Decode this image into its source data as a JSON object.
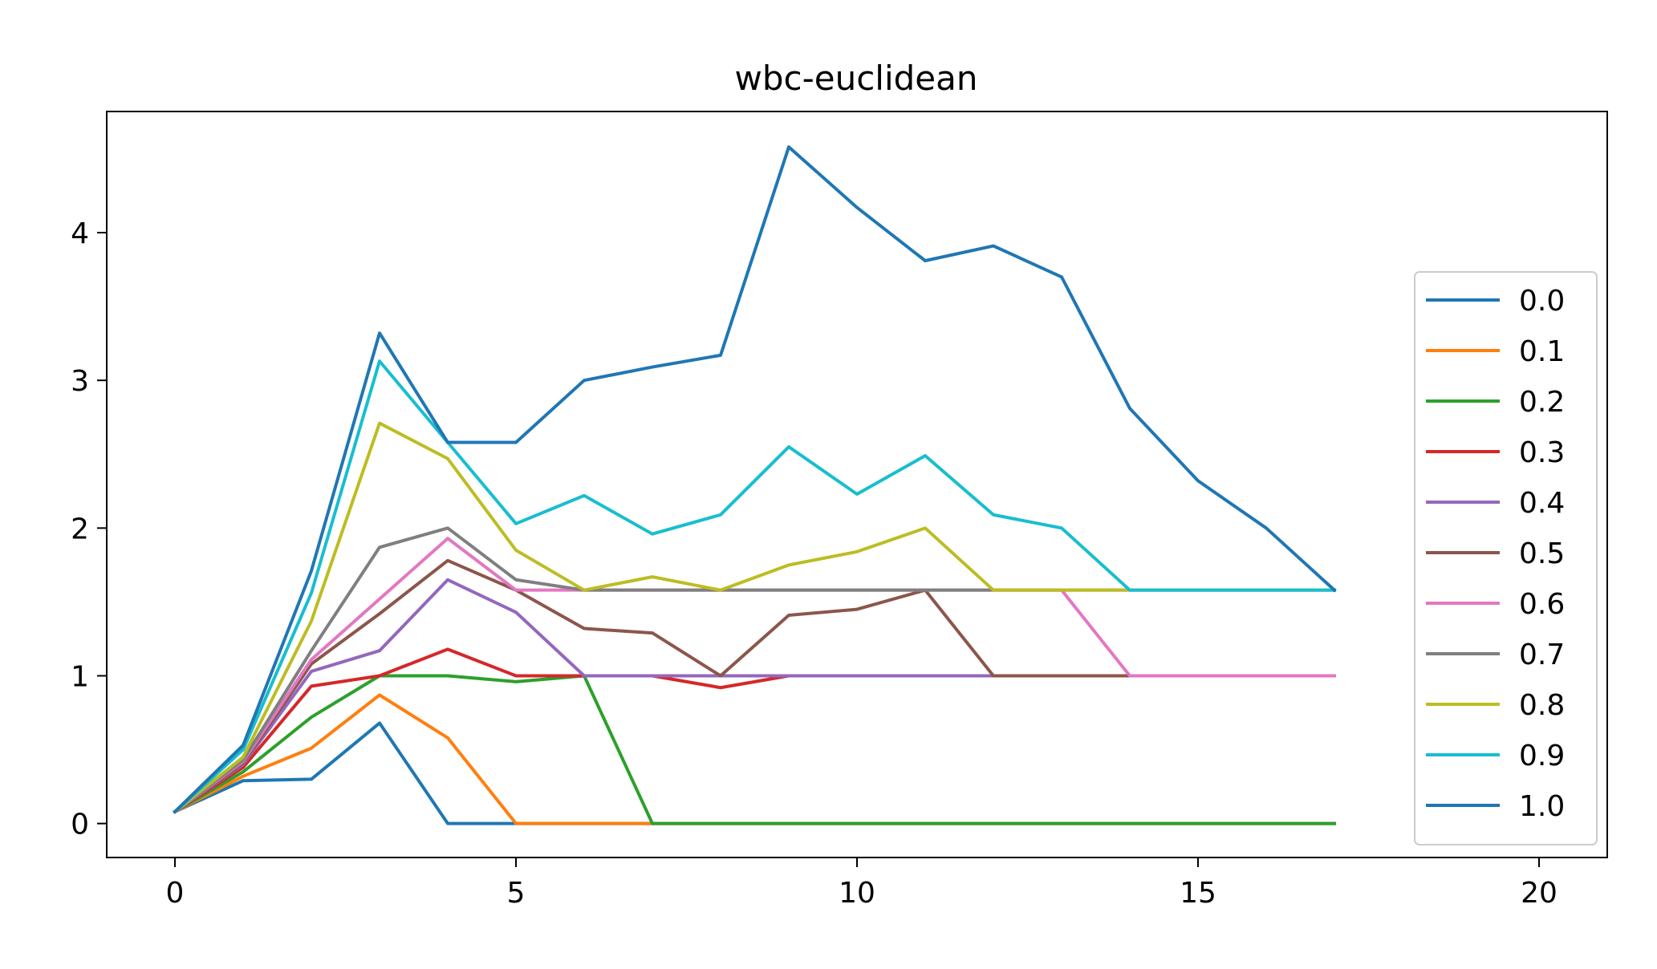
{
  "chart_data": {
    "type": "line",
    "title": "wbc-euclidean",
    "xlabel": "",
    "ylabel": "",
    "xlim": [
      -1,
      21
    ],
    "ylim": [
      -0.23,
      4.82
    ],
    "xticks": [
      0,
      5,
      10,
      15,
      20
    ],
    "yticks": [
      0,
      1,
      2,
      3,
      4
    ],
    "grid": false,
    "legend_position": "center-right",
    "x": [
      0,
      1,
      2,
      3,
      4,
      5,
      6,
      7,
      8,
      9,
      10,
      11,
      12,
      13,
      14,
      15,
      16,
      17
    ],
    "series": [
      {
        "name": "0.0",
        "color": "#1f77b4",
        "values": [
          0.08,
          0.29,
          0.3,
          0.68,
          0,
          0,
          0,
          0,
          0,
          0,
          0,
          0,
          0,
          0,
          0,
          0,
          0,
          0
        ]
      },
      {
        "name": "0.1",
        "color": "#ff7f0e",
        "values": [
          0.08,
          0.32,
          0.51,
          0.87,
          0.58,
          0,
          0,
          0,
          0,
          0,
          0,
          0,
          0,
          0,
          0,
          0,
          0,
          0
        ]
      },
      {
        "name": "0.2",
        "color": "#2ca02c",
        "values": [
          0.08,
          0.35,
          0.72,
          1.0,
          1.0,
          0.96,
          1.0,
          0,
          0,
          0,
          0,
          0,
          0,
          0,
          0,
          0,
          0,
          0
        ]
      },
      {
        "name": "0.3",
        "color": "#d62728",
        "values": [
          0.08,
          0.38,
          0.93,
          1.0,
          1.18,
          1.0,
          1.0,
          1.0,
          0.92,
          1.0,
          1.0,
          1.0,
          1.0,
          1.0,
          1.0,
          1.0,
          1.0,
          1.0
        ]
      },
      {
        "name": "0.4",
        "color": "#9467bd",
        "values": [
          0.08,
          0.4,
          1.03,
          1.17,
          1.65,
          1.43,
          1.0,
          1.0,
          1.0,
          1.0,
          1.0,
          1.0,
          1.0,
          1.0,
          1.0,
          1.0,
          1.0,
          1.0
        ]
      },
      {
        "name": "0.5",
        "color": "#8c564b",
        "values": [
          0.08,
          0.41,
          1.08,
          1.42,
          1.78,
          1.58,
          1.32,
          1.29,
          1.0,
          1.41,
          1.45,
          1.58,
          1.0,
          1.0,
          1.0,
          1.0,
          1.0,
          1.0
        ]
      },
      {
        "name": "0.6",
        "color": "#e377c2",
        "values": [
          0.08,
          0.42,
          1.11,
          1.52,
          1.93,
          1.58,
          1.58,
          1.58,
          1.58,
          1.58,
          1.58,
          1.58,
          1.58,
          1.58,
          1.0,
          1.0,
          1.0,
          1.0
        ]
      },
      {
        "name": "0.7",
        "color": "#7f7f7f",
        "values": [
          0.08,
          0.43,
          1.17,
          1.87,
          2.0,
          1.65,
          1.58,
          1.58,
          1.58,
          1.58,
          1.58,
          1.58,
          1.58,
          1.58,
          1.58,
          1.58,
          1.58,
          1.58
        ]
      },
      {
        "name": "0.8",
        "color": "#bcbd22",
        "values": [
          0.08,
          0.45,
          1.37,
          2.71,
          2.47,
          1.85,
          1.58,
          1.67,
          1.58,
          1.75,
          1.84,
          2.0,
          1.58,
          1.58,
          1.58,
          1.58,
          1.58,
          1.58
        ]
      },
      {
        "name": "0.9",
        "color": "#17becf",
        "values": [
          0.08,
          0.5,
          1.56,
          3.13,
          2.58,
          2.03,
          2.22,
          1.96,
          2.09,
          2.55,
          2.23,
          2.49,
          2.09,
          2.0,
          1.58,
          1.58,
          1.58,
          1.58
        ]
      },
      {
        "name": "1.0",
        "color": "#1f77b4",
        "values": [
          0.08,
          0.53,
          1.71,
          3.32,
          2.58,
          2.58,
          3.0,
          3.09,
          3.17,
          4.58,
          4.17,
          3.81,
          3.91,
          3.7,
          2.81,
          2.32,
          2.0,
          1.58
        ]
      }
    ]
  }
}
